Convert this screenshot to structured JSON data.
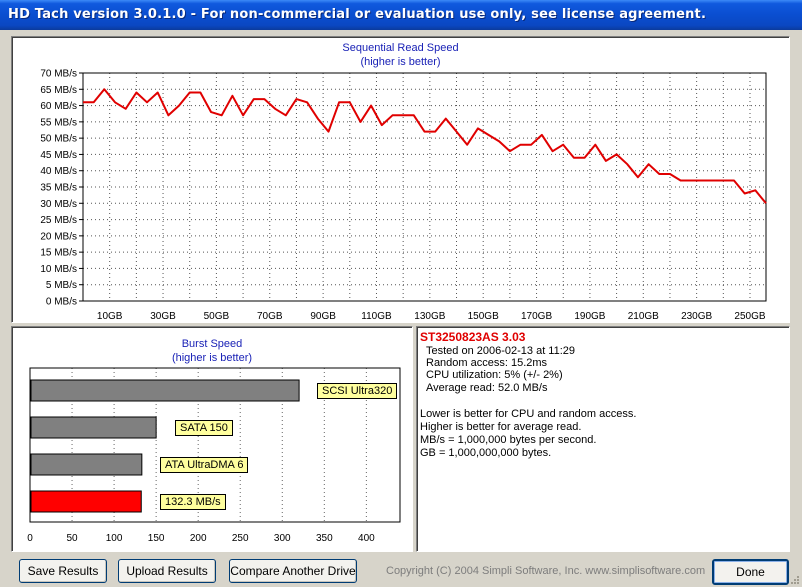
{
  "window": {
    "title": "HD Tach version 3.0.1.0  - For non-commercial or evaluation use only, see license agreement."
  },
  "colors": {
    "titlebar": "#0a4ed0",
    "line": "#e00000",
    "bar_gray": "#808080",
    "bar_red": "#ff0000",
    "label_bg": "#ffff9e",
    "title_text": "#1a22b6",
    "drive_name": "#e00000"
  },
  "sequential_chart": {
    "title_line1": "Sequential Read Speed",
    "title_line2": "(higher is better)",
    "chart_data": {
      "type": "line",
      "y_ticks": [
        "0 MB/s",
        "5 MB/s",
        "10 MB/s",
        "15 MB/s",
        "20 MB/s",
        "25 MB/s",
        "30 MB/s",
        "35 MB/s",
        "40 MB/s",
        "45 MB/s",
        "50 MB/s",
        "55 MB/s",
        "60 MB/s",
        "65 MB/s",
        "70 MB/s"
      ],
      "x_ticks": [
        "10GB",
        "30GB",
        "50GB",
        "70GB",
        "90GB",
        "110GB",
        "130GB",
        "150GB",
        "170GB",
        "190GB",
        "210GB",
        "230GB",
        "250GB"
      ],
      "x_tick_values": [
        10,
        30,
        50,
        70,
        90,
        110,
        130,
        150,
        170,
        190,
        210,
        230,
        250
      ],
      "xlim": [
        0,
        256
      ],
      "ylim": [
        0,
        70
      ],
      "grid": true,
      "series": [
        {
          "color": "#e00000",
          "x": [
            0,
            4,
            8,
            12,
            16,
            20,
            24,
            28,
            32,
            36,
            40,
            44,
            48,
            52,
            56,
            60,
            64,
            68,
            72,
            76,
            80,
            84,
            88,
            92,
            96,
            100,
            104,
            108,
            112,
            116,
            120,
            124,
            128,
            132,
            136,
            140,
            144,
            148,
            152,
            156,
            160,
            164,
            168,
            172,
            176,
            180,
            184,
            188,
            192,
            196,
            200,
            204,
            208,
            212,
            216,
            220,
            224,
            228,
            232,
            236,
            240,
            244,
            248,
            252,
            256
          ],
          "values": [
            61,
            61,
            65,
            61,
            59,
            64,
            61,
            64,
            57,
            60,
            64,
            64,
            58,
            57,
            63,
            57,
            62,
            62,
            59,
            57,
            62,
            61,
            56,
            52,
            61,
            61,
            55,
            60,
            54,
            57,
            57,
            57,
            52,
            52,
            56,
            52,
            48,
            53,
            51,
            49,
            46,
            48,
            48,
            51,
            46,
            48,
            44,
            44,
            48,
            43,
            45,
            42,
            38,
            42,
            39,
            39,
            37,
            37,
            37,
            37,
            37,
            37,
            33,
            34,
            30
          ]
        }
      ]
    }
  },
  "burst_chart": {
    "title_line1": "Burst Speed",
    "title_line2": "(higher is better)",
    "chart_data": {
      "type": "bar",
      "orientation": "horizontal",
      "categories": [
        "SCSI Ultra320",
        "SATA 150",
        "ATA UltraDMA 6",
        "132.3 MB/s"
      ],
      "values": [
        320,
        150,
        133,
        132.3
      ],
      "bar_colors": [
        "#808080",
        "#808080",
        "#808080",
        "#ff0000"
      ],
      "x_ticks": [
        "0",
        "50",
        "100",
        "150",
        "200",
        "250",
        "300",
        "350",
        "400"
      ],
      "xlim": [
        0,
        440
      ]
    }
  },
  "info": {
    "drive": "ST3250823AS  3.03",
    "tested": "Tested on 2006-02-13 at 11:29",
    "random_access": "Random access: 15.2ms",
    "cpu": "CPU utilization: 5% (+/- 2%)",
    "avg_read": "Average read: 52.0 MB/s",
    "note1": "Lower is better for CPU and random access.",
    "note2": "Higher is better for average read.",
    "note3": "MB/s = 1,000,000 bytes per second.",
    "note4": "GB = 1,000,000,000 bytes."
  },
  "buttons": {
    "save": "Save Results",
    "upload": "Upload Results",
    "compare": "Compare Another Drive",
    "done": "Done"
  },
  "footer": {
    "copyright": "Copyright (C) 2004 Simpli Software, Inc. www.simplisoftware.com"
  }
}
